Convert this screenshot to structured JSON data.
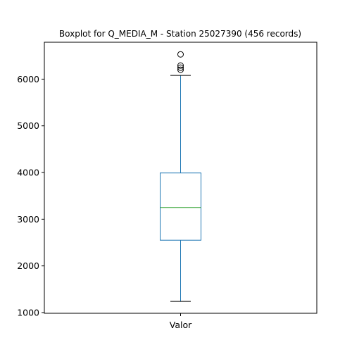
{
  "chart_data": {
    "type": "box",
    "title": "Boxplot for Q_MEDIA_M - Station 25027390 (456 records)",
    "xlabel": "",
    "ylabel": "",
    "categories": [
      "Valor"
    ],
    "ylim": [
      985,
      6790
    ],
    "yticks": [
      1000,
      2000,
      3000,
      4000,
      5000,
      6000
    ],
    "boxes": [
      {
        "category": "Valor",
        "whisker_low": 1240,
        "q1": 2550,
        "median": 3250,
        "q3": 3990,
        "whisker_high": 6080,
        "outliers": [
          6200,
          6245,
          6290,
          6530
        ]
      }
    ],
    "grid": false,
    "colors": {
      "box": "#1f77b4",
      "median": "#2ca02c",
      "axis": "#000000"
    }
  }
}
